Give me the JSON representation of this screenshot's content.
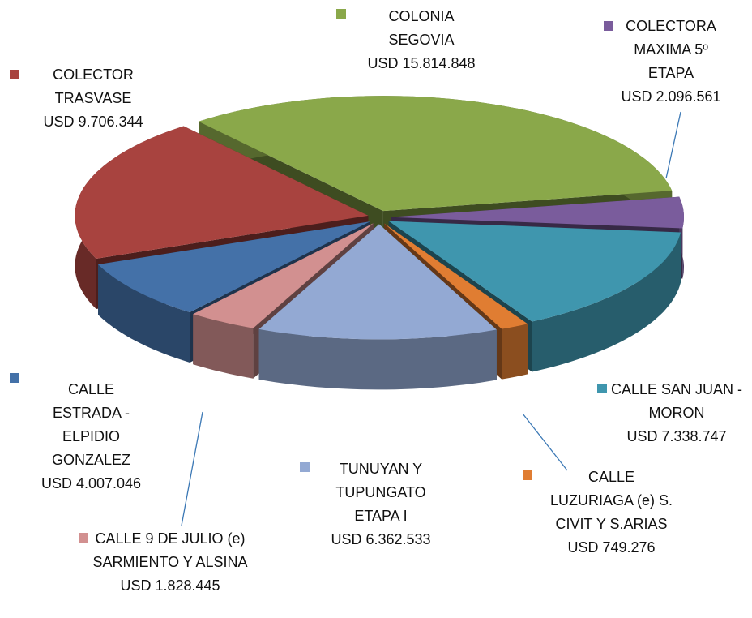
{
  "chart_data": {
    "type": "pie3d",
    "categories": [
      "COLONIA SEGOVIA",
      "COLECTORA MAXIMA 5º ETAPA",
      "CALLE SAN JUAN - MORON",
      "CALLE LUZURIAGA (e) S. CIVIT Y S.ARIAS",
      "TUNUYAN Y TUPUNGATO ETAPA I",
      "CALLE 9 DE JULIO (e) SARMIENTO Y ALSINA",
      "CALLE ESTRADA - ELPIDIO GONZALEZ",
      "COLECTOR TRASVASE"
    ],
    "values": [
      15814848,
      2096561,
      7338747,
      749276,
      6362533,
      1828445,
      4007046,
      9706344
    ],
    "value_labels": [
      "USD 15.814.848",
      "USD 2.096.561",
      "USD 7.338.747",
      "USD 749.276",
      "USD 6.362.533",
      "USD 1.828.445",
      "USD 4.007.046",
      "USD 9.706.344"
    ],
    "colors": [
      "#8aa84a",
      "#7a5c9c",
      "#3f96ae",
      "#e07d32",
      "#93a9d3",
      "#d29090",
      "#4471a8",
      "#a8433f"
    ]
  }
}
